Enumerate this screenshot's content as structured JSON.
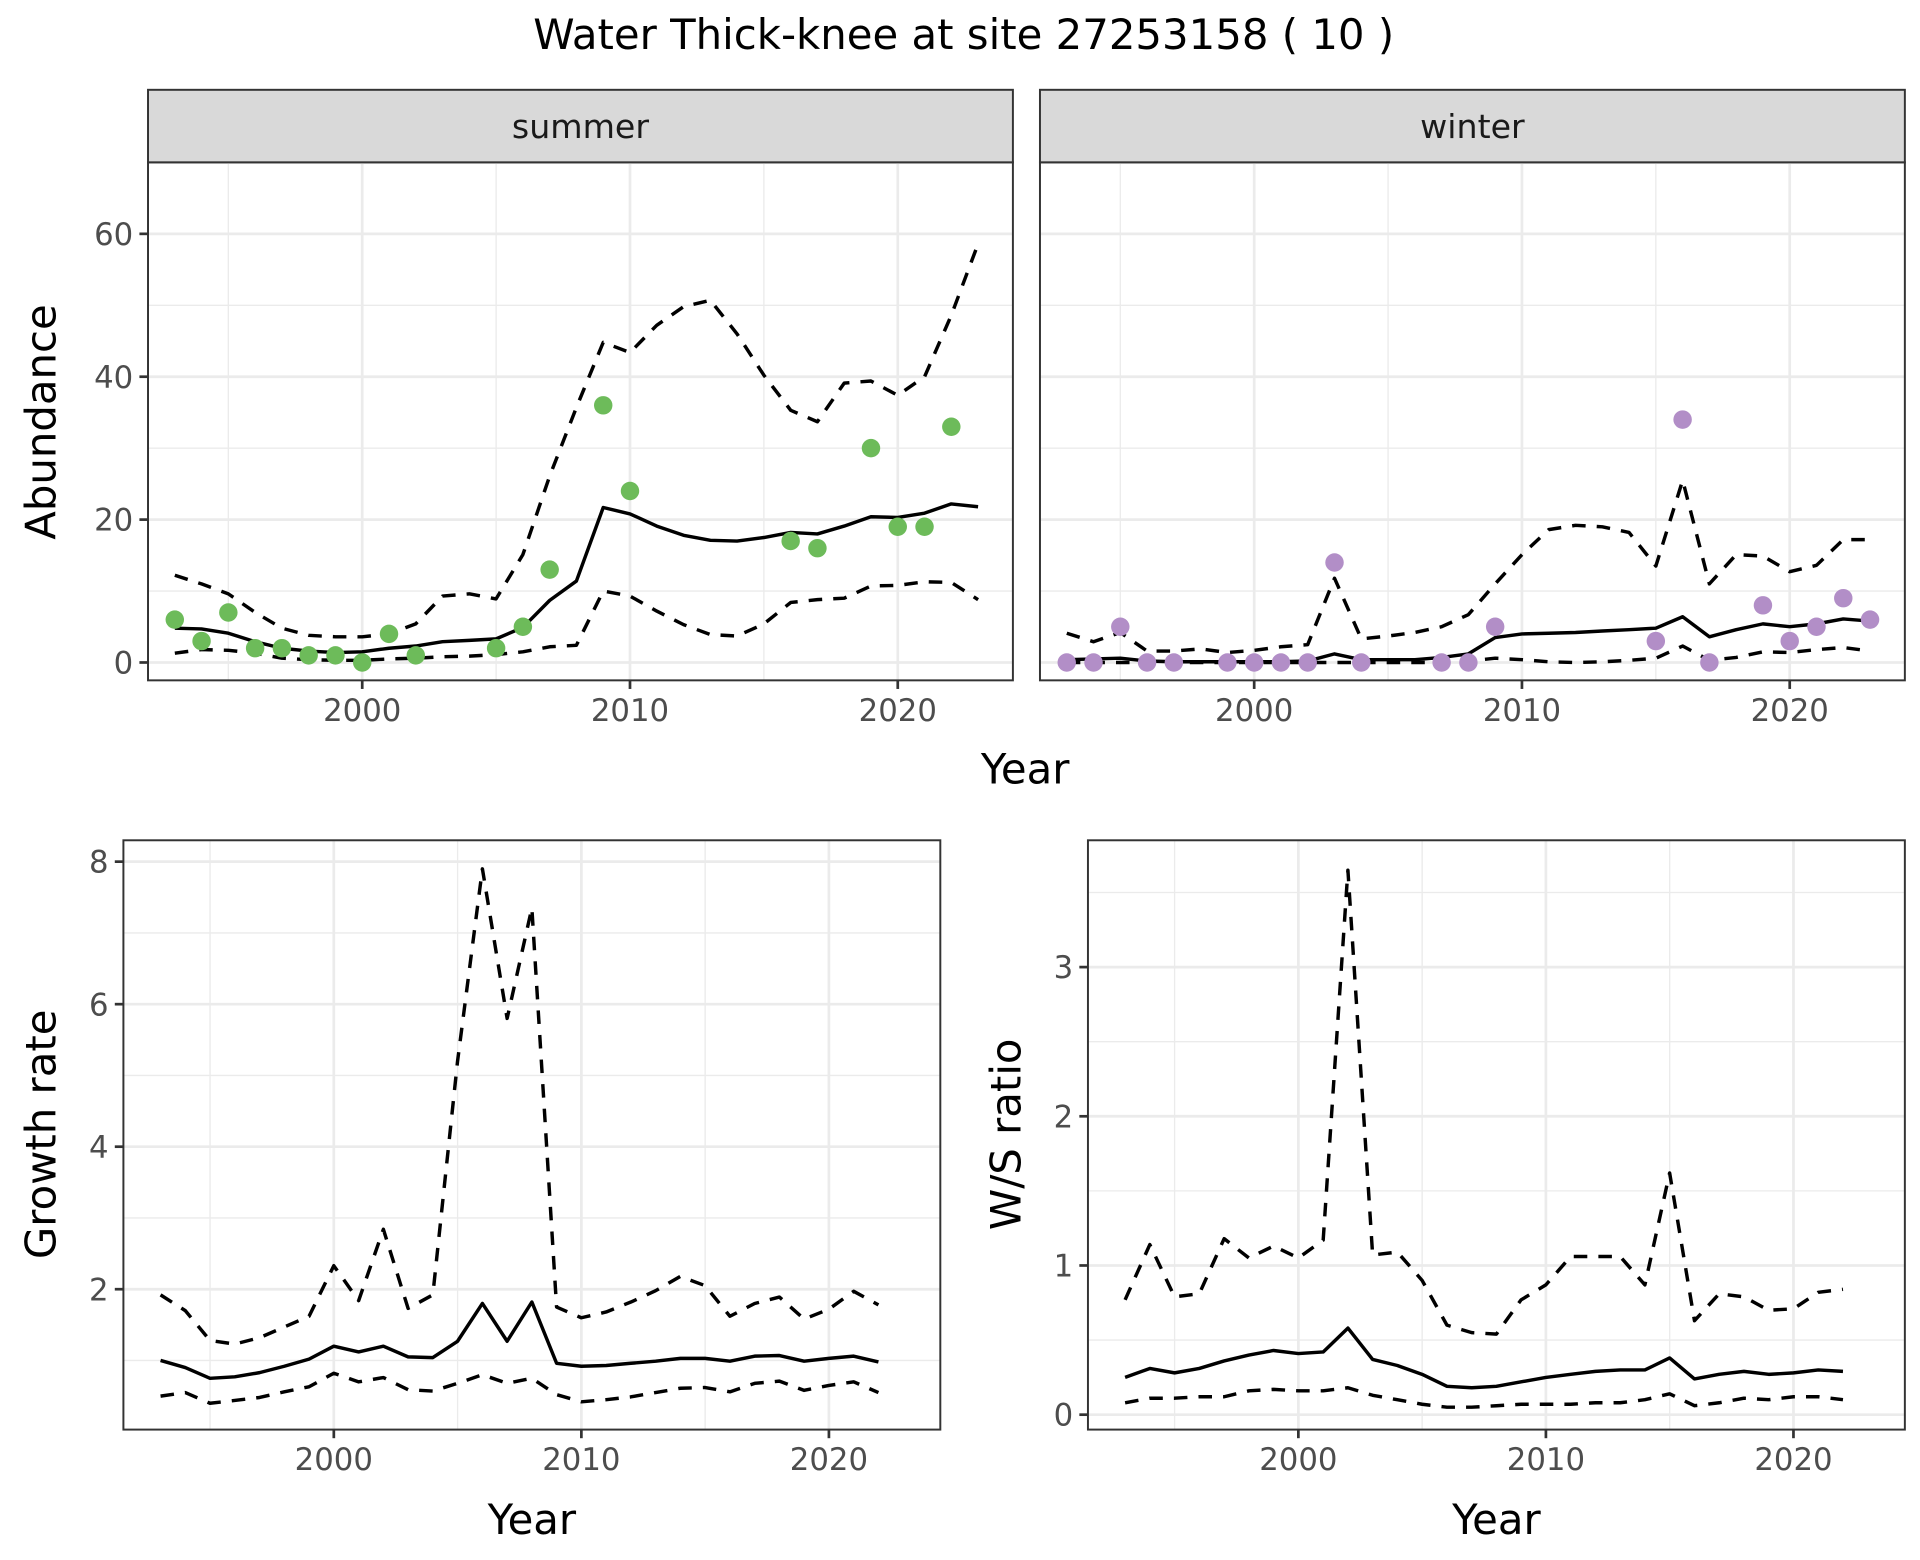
{
  "chart_data": {
    "title": "Water Thick-knee at site 27253158 ( 10 )",
    "panels": [
      {
        "id": "abundance",
        "type": "line",
        "facets": [
          "summer",
          "winter"
        ],
        "xlabel": "Year",
        "ylabel": "Abundance",
        "xlim": [
          1992,
          2024.3
        ],
        "ylim": [
          -2.5,
          70
        ],
        "xticks": [
          2000,
          2010,
          2020
        ],
        "yticks": [
          0,
          20,
          40,
          60
        ],
        "grid": true,
        "x": [
          1993,
          1994,
          1995,
          1996,
          1997,
          1998,
          1999,
          2000,
          2001,
          2002,
          2003,
          2004,
          2005,
          2006,
          2007,
          2008,
          2009,
          2010,
          2011,
          2012,
          2013,
          2014,
          2015,
          2016,
          2017,
          2018,
          2019,
          2020,
          2021,
          2022,
          2023
        ],
        "series": {
          "summer": {
            "color": "#6dbb5a",
            "model": [
              4.8,
              4.7,
              4.1,
              2.9,
              2.0,
              1.6,
              1.4,
              1.5,
              2.0,
              2.3,
              2.9,
              3.1,
              3.3,
              4.9,
              8.7,
              11.4,
              21.7,
              20.8,
              19.1,
              17.8,
              17.1,
              17.0,
              17.5,
              18.2,
              18.0,
              19.1,
              20.4,
              20.3,
              20.9,
              22.2,
              21.8
            ],
            "upper": [
              12.2,
              11.0,
              9.6,
              7.0,
              4.8,
              3.8,
              3.6,
              3.6,
              4.0,
              5.4,
              9.3,
              9.6,
              8.9,
              15.1,
              26.1,
              35.7,
              44.8,
              43.4,
              47.2,
              49.8,
              50.7,
              46.0,
              40.2,
              35.3,
              33.7,
              39.1,
              39.4,
              37.4,
              40.0,
              48.6,
              58.6
            ],
            "lower": [
              1.3,
              1.8,
              1.7,
              1.3,
              0.6,
              0.4,
              0.3,
              0.3,
              0.5,
              0.6,
              0.8,
              0.9,
              1.1,
              1.5,
              2.2,
              2.4,
              10.0,
              9.3,
              7.2,
              5.3,
              3.9,
              3.7,
              5.4,
              8.4,
              8.8,
              9.0,
              10.7,
              10.8,
              11.3,
              11.2,
              8.8
            ],
            "observed": [
              {
                "x": 1993,
                "y": 6
              },
              {
                "x": 1994,
                "y": 3
              },
              {
                "x": 1995,
                "y": 7
              },
              {
                "x": 1996,
                "y": 2
              },
              {
                "x": 1997,
                "y": 2
              },
              {
                "x": 1998,
                "y": 1
              },
              {
                "x": 1999,
                "y": 1
              },
              {
                "x": 2000,
                "y": 0
              },
              {
                "x": 2001,
                "y": 4
              },
              {
                "x": 2002,
                "y": 1
              },
              {
                "x": 2005,
                "y": 2
              },
              {
                "x": 2006,
                "y": 5
              },
              {
                "x": 2007,
                "y": 13
              },
              {
                "x": 2009,
                "y": 36
              },
              {
                "x": 2010,
                "y": 24
              },
              {
                "x": 2016,
                "y": 17
              },
              {
                "x": 2017,
                "y": 16
              },
              {
                "x": 2019,
                "y": 30
              },
              {
                "x": 2020,
                "y": 19
              },
              {
                "x": 2021,
                "y": 19
              },
              {
                "x": 2022,
                "y": 33
              }
            ]
          },
          "winter": {
            "color": "#b28ec7",
            "model": [
              0.4,
              0.5,
              0.6,
              0.2,
              0.1,
              0.1,
              0.1,
              0.1,
              0.1,
              0.2,
              1.2,
              0.4,
              0.4,
              0.4,
              0.7,
              1.2,
              3.5,
              4.0,
              4.1,
              4.2,
              4.4,
              4.6,
              4.8,
              6.4,
              3.6,
              4.6,
              5.4,
              5.0,
              5.4,
              6.1,
              5.8
            ],
            "upper": [
              4.1,
              2.9,
              4.2,
              1.6,
              1.6,
              1.9,
              1.4,
              1.7,
              2.2,
              2.5,
              11.8,
              3.3,
              3.7,
              4.2,
              5.0,
              6.7,
              11.0,
              15.1,
              18.6,
              19.2,
              19.0,
              18.2,
              13.5,
              25.5,
              11.0,
              15.1,
              14.9,
              12.7,
              13.6,
              17.2,
              17.2
            ],
            "lower": [
              0,
              0,
              0,
              0,
              0,
              0,
              0,
              0,
              0,
              0,
              0,
              0,
              0,
              0,
              0,
              0.2,
              0.6,
              0.4,
              0.1,
              0,
              0.1,
              0.3,
              0.6,
              2.3,
              0.3,
              0.7,
              1.5,
              1.4,
              1.8,
              2.1,
              1.6
            ],
            "observed": [
              {
                "x": 1993,
                "y": 0
              },
              {
                "x": 1994,
                "y": 0
              },
              {
                "x": 1995,
                "y": 5
              },
              {
                "x": 1996,
                "y": 0
              },
              {
                "x": 1997,
                "y": 0
              },
              {
                "x": 1999,
                "y": 0
              },
              {
                "x": 2000,
                "y": 0
              },
              {
                "x": 2001,
                "y": 0
              },
              {
                "x": 2002,
                "y": 0
              },
              {
                "x": 2003,
                "y": 14
              },
              {
                "x": 2004,
                "y": 0
              },
              {
                "x": 2007,
                "y": 0
              },
              {
                "x": 2008,
                "y": 0
              },
              {
                "x": 2009,
                "y": 5
              },
              {
                "x": 2015,
                "y": 3
              },
              {
                "x": 2016,
                "y": 34
              },
              {
                "x": 2017,
                "y": 0
              },
              {
                "x": 2019,
                "y": 8
              },
              {
                "x": 2020,
                "y": 3
              },
              {
                "x": 2021,
                "y": 5
              },
              {
                "x": 2022,
                "y": 9
              },
              {
                "x": 2023,
                "y": 6
              }
            ]
          }
        }
      },
      {
        "id": "growth",
        "type": "line",
        "xlabel": "Year",
        "ylabel": "Growth rate",
        "xlim": [
          1991.5,
          2024.5
        ],
        "ylim": [
          0.03,
          8.3
        ],
        "xticks": [
          2000,
          2010,
          2020
        ],
        "yticks": [
          2,
          4,
          6,
          8
        ],
        "grid": true,
        "x": [
          1993,
          1994,
          1995,
          1996,
          1997,
          1998,
          1999,
          2000,
          2001,
          2002,
          2003,
          2004,
          2005,
          2006,
          2007,
          2008,
          2009,
          2010,
          2011,
          2012,
          2013,
          2014,
          2015,
          2016,
          2017,
          2018,
          2019,
          2020,
          2021,
          2022
        ],
        "model": [
          1.0,
          0.9,
          0.75,
          0.77,
          0.83,
          0.92,
          1.02,
          1.2,
          1.12,
          1.2,
          1.05,
          1.04,
          1.27,
          1.8,
          1.27,
          1.82,
          0.96,
          0.92,
          0.93,
          0.96,
          0.99,
          1.03,
          1.03,
          0.99,
          1.06,
          1.07,
          0.99,
          1.03,
          1.06,
          0.98
        ],
        "upper": [
          1.92,
          1.7,
          1.28,
          1.23,
          1.32,
          1.47,
          1.62,
          2.33,
          1.84,
          2.84,
          1.73,
          1.92,
          5.2,
          7.9,
          5.8,
          7.35,
          1.75,
          1.6,
          1.68,
          1.82,
          1.98,
          2.18,
          2.05,
          1.62,
          1.8,
          1.89,
          1.58,
          1.72,
          1.97,
          1.78
        ],
        "lower": [
          0.5,
          0.55,
          0.4,
          0.44,
          0.48,
          0.56,
          0.63,
          0.82,
          0.7,
          0.76,
          0.59,
          0.57,
          0.68,
          0.8,
          0.68,
          0.75,
          0.52,
          0.42,
          0.45,
          0.49,
          0.55,
          0.61,
          0.62,
          0.56,
          0.68,
          0.71,
          0.58,
          0.65,
          0.7,
          0.55
        ]
      },
      {
        "id": "ws_ratio",
        "type": "line",
        "xlabel": "Year",
        "ylabel": "W/S ratio",
        "xlim": [
          1991.5,
          2024.5
        ],
        "ylim": [
          -0.1,
          3.85
        ],
        "xticks": [
          2000,
          2010,
          2020
        ],
        "yticks": [
          0,
          1,
          2,
          3
        ],
        "grid": true,
        "x": [
          1993,
          1994,
          1995,
          1996,
          1997,
          1998,
          1999,
          2000,
          2001,
          2002,
          2003,
          2004,
          2005,
          2006,
          2007,
          2008,
          2009,
          2010,
          2011,
          2012,
          2013,
          2014,
          2015,
          2016,
          2017,
          2018,
          2019,
          2020,
          2021,
          2022
        ],
        "model": [
          0.25,
          0.31,
          0.28,
          0.31,
          0.36,
          0.4,
          0.43,
          0.41,
          0.42,
          0.58,
          0.37,
          0.33,
          0.27,
          0.19,
          0.18,
          0.19,
          0.22,
          0.25,
          0.27,
          0.29,
          0.3,
          0.3,
          0.38,
          0.24,
          0.27,
          0.29,
          0.27,
          0.28,
          0.3,
          0.29
        ],
        "upper": [
          0.77,
          1.14,
          0.79,
          0.81,
          1.18,
          1.05,
          1.13,
          1.05,
          1.17,
          3.65,
          1.07,
          1.09,
          0.9,
          0.6,
          0.55,
          0.54,
          0.77,
          0.87,
          1.06,
          1.06,
          1.06,
          0.87,
          1.62,
          0.63,
          0.81,
          0.79,
          0.7,
          0.71,
          0.82,
          0.84
        ],
        "lower": [
          0.08,
          0.11,
          0.11,
          0.12,
          0.12,
          0.16,
          0.17,
          0.16,
          0.16,
          0.18,
          0.13,
          0.1,
          0.07,
          0.05,
          0.05,
          0.06,
          0.07,
          0.07,
          0.07,
          0.08,
          0.08,
          0.1,
          0.14,
          0.06,
          0.08,
          0.11,
          0.1,
          0.12,
          0.12,
          0.1
        ]
      }
    ]
  },
  "labels": {
    "title": "Water Thick-knee at site 27253158 ( 10 )",
    "strip_summer": "summer",
    "strip_winter": "winter",
    "top_xlabel": "Year",
    "top_ylabel": "Abundance",
    "growth_xlabel": "Year",
    "growth_ylabel": "Growth rate",
    "ws_xlabel": "Year",
    "ws_ylabel": "W/S ratio"
  }
}
